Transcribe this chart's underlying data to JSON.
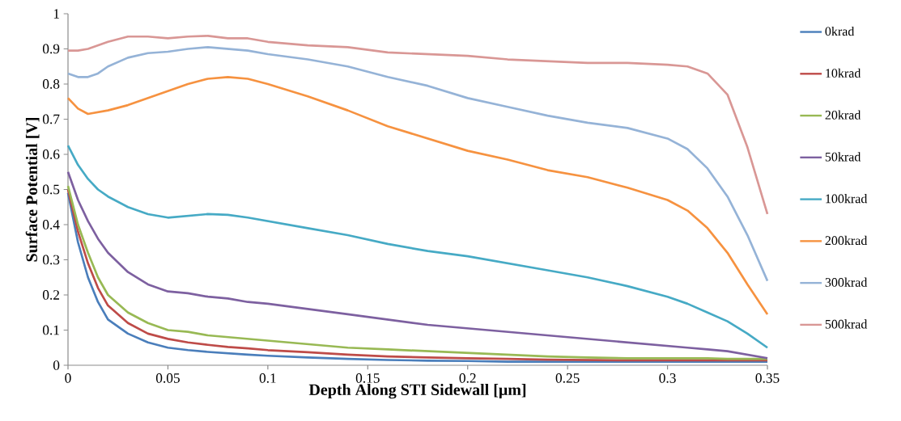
{
  "chart_data": {
    "type": "line",
    "xlabel": "Depth Along STI Sidewall [μm]",
    "ylabel": "Surface Potential [V]",
    "x": [
      0,
      0.005,
      0.01,
      0.015,
      0.02,
      0.03,
      0.04,
      0.05,
      0.06,
      0.07,
      0.08,
      0.09,
      0.1,
      0.12,
      0.14,
      0.16,
      0.18,
      0.2,
      0.22,
      0.24,
      0.26,
      0.28,
      0.3,
      0.31,
      0.32,
      0.33,
      0.34,
      0.35
    ],
    "series": [
      {
        "name": "0krad",
        "color": "#4a7ebb",
        "values": [
          0.49,
          0.35,
          0.25,
          0.18,
          0.13,
          0.09,
          0.065,
          0.05,
          0.043,
          0.038,
          0.034,
          0.03,
          0.027,
          0.022,
          0.018,
          0.015,
          0.013,
          0.012,
          0.01,
          0.01,
          0.01,
          0.01,
          0.01,
          0.01,
          0.01,
          0.01,
          0.01,
          0.01
        ]
      },
      {
        "name": "10krad",
        "color": "#be4b48",
        "values": [
          0.5,
          0.38,
          0.29,
          0.22,
          0.17,
          0.12,
          0.09,
          0.075,
          0.065,
          0.058,
          0.052,
          0.048,
          0.043,
          0.037,
          0.03,
          0.025,
          0.022,
          0.02,
          0.018,
          0.016,
          0.015,
          0.014,
          0.014,
          0.014,
          0.014,
          0.014,
          0.014,
          0.014
        ]
      },
      {
        "name": "20krad",
        "color": "#98b954",
        "values": [
          0.51,
          0.4,
          0.32,
          0.25,
          0.2,
          0.15,
          0.12,
          0.1,
          0.095,
          0.085,
          0.08,
          0.075,
          0.07,
          0.06,
          0.05,
          0.045,
          0.04,
          0.035,
          0.03,
          0.025,
          0.022,
          0.02,
          0.02,
          0.02,
          0.02,
          0.018,
          0.018,
          0.018
        ]
      },
      {
        "name": "50krad",
        "color": "#7d60a0",
        "values": [
          0.55,
          0.47,
          0.41,
          0.36,
          0.32,
          0.265,
          0.23,
          0.21,
          0.205,
          0.195,
          0.19,
          0.18,
          0.175,
          0.16,
          0.145,
          0.13,
          0.115,
          0.105,
          0.095,
          0.085,
          0.075,
          0.065,
          0.055,
          0.05,
          0.045,
          0.04,
          0.03,
          0.02
        ]
      },
      {
        "name": "100krad",
        "color": "#46aac5",
        "values": [
          0.625,
          0.57,
          0.53,
          0.5,
          0.48,
          0.45,
          0.43,
          0.42,
          0.425,
          0.43,
          0.428,
          0.42,
          0.41,
          0.39,
          0.37,
          0.345,
          0.325,
          0.31,
          0.29,
          0.27,
          0.25,
          0.225,
          0.195,
          0.175,
          0.15,
          0.125,
          0.09,
          0.05
        ]
      },
      {
        "name": "200krad",
        "color": "#f69240",
        "values": [
          0.76,
          0.73,
          0.715,
          0.72,
          0.725,
          0.74,
          0.76,
          0.78,
          0.8,
          0.815,
          0.82,
          0.815,
          0.8,
          0.765,
          0.725,
          0.68,
          0.645,
          0.61,
          0.585,
          0.555,
          0.535,
          0.505,
          0.47,
          0.44,
          0.39,
          0.32,
          0.23,
          0.145
        ]
      },
      {
        "name": "300krad",
        "color": "#95b3d7",
        "values": [
          0.83,
          0.82,
          0.82,
          0.83,
          0.85,
          0.875,
          0.888,
          0.892,
          0.9,
          0.905,
          0.9,
          0.895,
          0.885,
          0.87,
          0.85,
          0.82,
          0.795,
          0.76,
          0.735,
          0.71,
          0.69,
          0.675,
          0.645,
          0.615,
          0.56,
          0.48,
          0.37,
          0.24
        ]
      },
      {
        "name": "500krad",
        "color": "#d99795",
        "values": [
          0.895,
          0.895,
          0.9,
          0.91,
          0.92,
          0.935,
          0.935,
          0.93,
          0.935,
          0.937,
          0.93,
          0.93,
          0.92,
          0.91,
          0.905,
          0.89,
          0.885,
          0.88,
          0.87,
          0.865,
          0.86,
          0.86,
          0.855,
          0.85,
          0.83,
          0.77,
          0.62,
          0.43
        ]
      }
    ],
    "xlim": [
      0,
      0.35
    ],
    "xticks": [
      0,
      0.05,
      0.1,
      0.15,
      0.2,
      0.25,
      0.3,
      0.35
    ],
    "ylim": [
      0,
      1
    ],
    "yticks": [
      0,
      0.1,
      0.2,
      0.3,
      0.4,
      0.5,
      0.6,
      0.7,
      0.8,
      0.9,
      1
    ],
    "legend": "right",
    "line_style": "solid"
  }
}
